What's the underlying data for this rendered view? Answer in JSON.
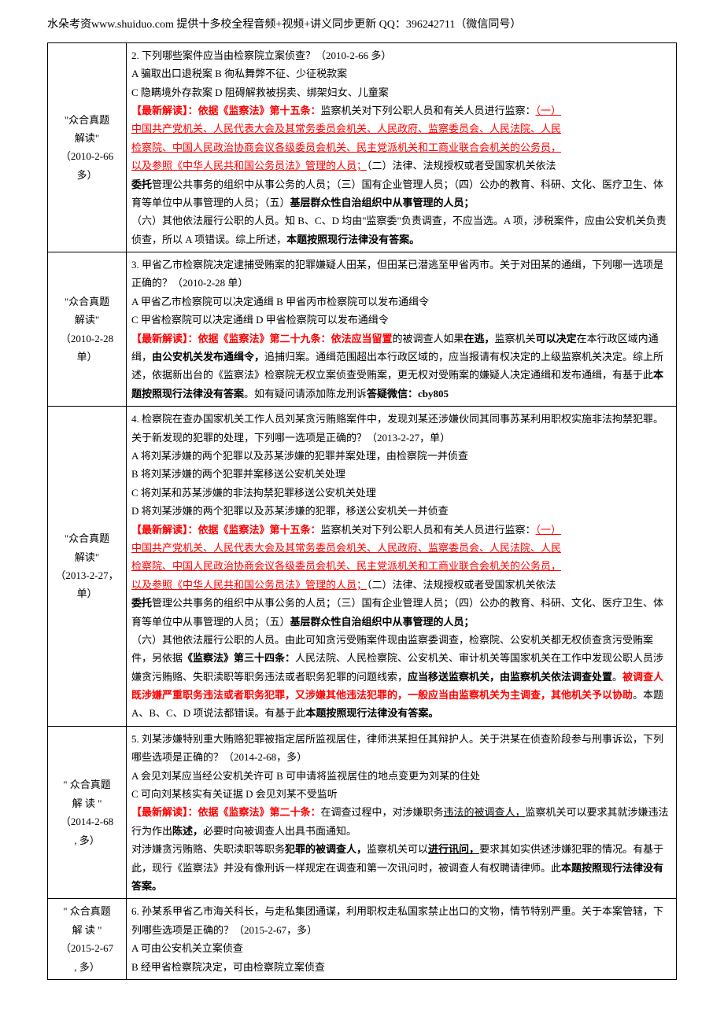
{
  "header": {
    "text": "水朵考资www.shuiduo.com   提供十多校全程音频+视频+讲义同步更新   QQ：396242711（微信同号）"
  },
  "rows": [
    {
      "label_lines": [
        "\"众合真题",
        "解读\"",
        "（2010-2-66",
        "多）"
      ],
      "content": {
        "q_intro": "2. 下列哪些案件应当由检察院立案侦查？（2010-2-66 多）",
        "opt_a": "A   骗取出口退税案       B   徇私舞弊不征、少征税款案",
        "opt_c": "C   隐瞒境外存款案       D   阻碍解救被拐卖、绑架妇女、儿童案",
        "explain_label": "【最新解读】：依据《监察法》第十五条：",
        "explain_1": "监察机关对下列公职人员和有关人员进行监察：",
        "link_1a": "（一）",
        "link_1": "中国共产党机关、人民代表大会及其常务委员会机关、人民政府、监察委员会、人民法院、人民",
        "link_2": "检察院、中国人民政治协商会议各级委员会机关、民主党派机关和工商业联合会机关的公务员，",
        "link_3": "以及参照《中华人民共和国公务员法》管理的人员；",
        "explain_2a": "（二）法律、法规授权或者受国家机关依法",
        "explain_2b": "委托",
        "explain_2c": "管理公共事务的组织中从事公务的人员；（三）国有企业管理人员；（四）公办的教育、科研、文化、医疗卫生、体育等单位中从事管理的人员；（五）",
        "explain_2d": "基层群众性自治组织中从事管理的人员；",
        "explain_3": "（六）其他依法履行公职的人员。知 B、C、D 均由\"监察委\"负责调查，不应当选。A 项，涉税案件，应由公安机关负责侦查，所以 A 项错误。综上所述，",
        "explain_3b": "本题按照现行法律没有答案。"
      }
    },
    {
      "label_lines": [
        "\"众合真题",
        "解读\"",
        "（2010-2-28",
        "单）"
      ],
      "content": {
        "q_intro": "3. 甲省乙市检察院决定逮捕受贿案的犯罪嫌疑人田某，但田某已潜逃至甲省丙市。关于对田某的通缉，下列哪一选项是正确的？（2010-2-28 单）",
        "opt_a": "A   甲省乙市检察院可以决定通缉     B   甲省丙市检察院可以发布通缉令",
        "opt_c": "C   甲省检察院可以决定通缉           D   甲省检察院可以发布通缉令",
        "explain_label": "【最新解读】：依据《监察法》第二十九条：依法应当留置",
        "explain_1a": "的被调查人如果",
        "explain_1b": "在逃，",
        "explain_1c": "监察机关",
        "explain_1d": "可以决定",
        "explain_1e": "在本行政区域内通缉，",
        "explain_1f": "由公安机关发布通缉令，",
        "explain_1g": "追捕归案。通缉范围超出本行政区域的，应当报请有权决定的上级监察机关决定。综上所述，依据新出台的《监察法》检察院无权立案侦查受贿案，更无权对受贿案的嫌疑人决定通缉和发布通缉，有基于此",
        "explain_1h": "本题按照现行法律没有答案",
        "explain_1i": "。如有疑问请添加陈龙刑诉",
        "explain_1j": "答疑微信：cby805"
      }
    },
    {
      "label_lines": [
        "\"众合真题",
        "解读\"",
        "（2013-2-27，",
        "单）"
      ],
      "content": {
        "q_intro": "4. 检察院在查办国家机关工作人员刘某贪污贿赂案件中，发现刘某还涉嫌伙同其同事苏某利用职权实施非法拘禁犯罪。关于新发现的犯罪的处理，下列哪一选项是正确的？（2013-2-27，单）",
        "opt_a": "A   将刘某涉嫌的两个犯罪以及苏某涉嫌的犯罪并案处理，由检察院一并侦查",
        "opt_b": "B   将刘某涉嫌的两个犯罪并案移送公安机关处理",
        "opt_c": "C   将刘某和苏某涉嫌的非法拘禁犯罪移送公安机关处理",
        "opt_d": "D   将刘某涉嫌的两个犯罪以及苏某涉嫌的犯罪，移送公安机关一并侦查",
        "explain_label": "【最新解读】：依据《监察法》第十五条：",
        "explain_1": "监察机关对下列公职人员和有关人员进行监察：",
        "link_1a": "（一）",
        "link_1": "中国共产党机关、人民代表大会及其常务委员会机关、人民政府、监察委员会、人民法院、人民",
        "link_2": "检察院、中国人民政治协商会议各级委员会机关、民主党派机关和工商业联合会机关的公务员，",
        "link_3": "以及参照《中华人民共和国公务员法》管理的人员；",
        "explain_2a": "（二）法律、法规授权或者受国家机关依法",
        "explain_2b": "委托",
        "explain_2c": "管理公共事务的组织中从事公务的人员；（三）国有企业管理人员；（四）公办的教育、科研、文化、医疗卫生、体育等单位中从事管理的人员；（五）",
        "explain_2d": "基层群众性自治组织中从事管理的人员；",
        "explain_3": "（六）其他依法履行公职的人员。由此可知贪污受贿案件现由监察委调查，检察院、公安机关都无权侦查贪污受贿案件，另依据",
        "explain_3b": "《监察法》第三十四条：",
        "explain_3c": "人民法院、人民检察院、公安机关、审计机关等国家机关在工作中发现公职人员涉嫌贪污贿赂、失职渎职等职务违法或者职务犯罪的问题线索，",
        "explain_3d": "应当移送监察机关，由监察机关依法调查处置",
        "explain_3e": "。",
        "explain_3f": "被调查人既涉嫌严重职务违法或者职务犯罪，又涉嫌其他违法犯罪的，一般应当由监察机关为主调查，其他机关予以协助",
        "explain_3g": "。本题 A、B、C、D 项说法都错误。有基于此",
        "explain_3h": "本题按照现行法律没有答案。"
      }
    },
    {
      "label_lines": [
        "\" 众合真题",
        "解   读   \"",
        "（2014-2-68",
        ",  多）"
      ],
      "content": {
        "q_intro": "5. 刘某涉嫌特别重大贿赂犯罪被指定居所监视居住，律师洪某担任其辩护人。关于洪某在侦查阶段参与刑事诉讼，下列哪些选项是正确的？（2014-2-68，多）",
        "opt_a": "A   会见刘某应当经公安机关许可       B   可申请将监视居住的地点变更为刘某的住处",
        "opt_c": "C   可向刘某核实有关证据                D   会见刘某不受监听",
        "explain_label": "【最新解读】：依据《监察法》第二十条：",
        "explain_1a": "在调查过程中，对涉嫌职务",
        "explain_1b": "违法的被调查人，",
        "explain_1c": "监察机关可以要求其就涉嫌违法行为作出",
        "explain_1d": "陈述，",
        "explain_1e": "必要时向被调查人出具书面通知。",
        "explain_2a": "对涉嫌贪污贿赂、失职渎职等职务",
        "explain_2b": "犯罪的被调查人，",
        "explain_2c": "监察机关可以",
        "explain_2d": "进行讯问，",
        "explain_2e": "要求其如实供述涉嫌犯罪的情况。有基于此，现行《监察法》并没有像刑诉一样规定在调查和第一次讯问时，被调查人有权聘请律师。此",
        "explain_2f": "本题按照现行法律没有答案。"
      }
    },
    {
      "label_lines": [
        "\" 众合真题",
        "解   读   \"",
        "（2015-2-67",
        ",  多）"
      ],
      "content": {
        "q_intro": "6. 孙某系甲省乙市海关科长，与走私集团通谋，利用职权走私国家禁止出口的文物，情节特别严重。关于本案管辖，下列哪些选项是正确的？（2015-2-67，多）",
        "opt_a": "A   可由公安机关立案侦查",
        "opt_b": "B   经甲省检察院决定，可由检察院立案侦查"
      }
    }
  ]
}
